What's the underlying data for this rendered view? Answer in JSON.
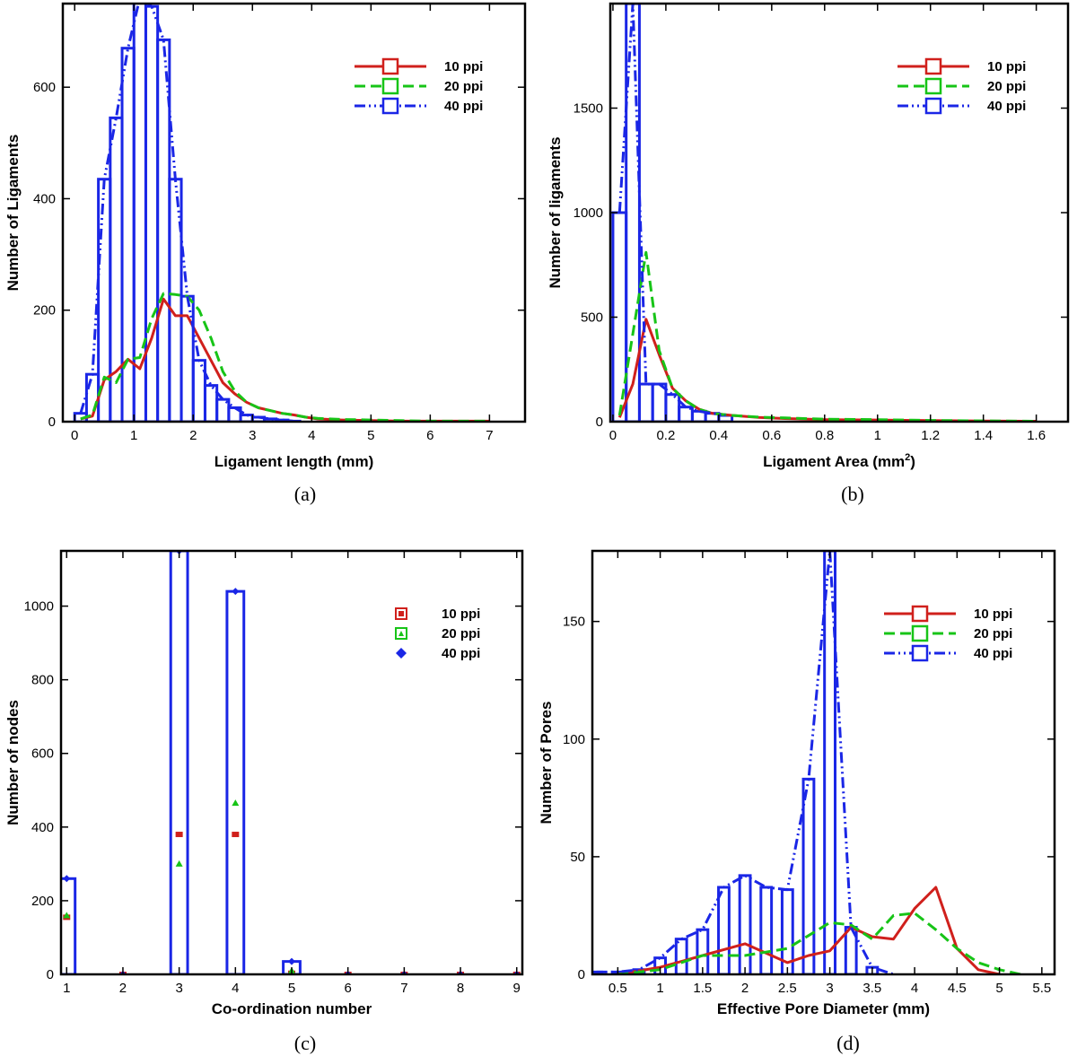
{
  "colors": {
    "p10": "#d0201c",
    "p20": "#17c417",
    "p40": "#1a26e6",
    "axis": "#000000"
  },
  "chart_data": [
    {
      "id": "a",
      "type": "bar",
      "caption": "(a)",
      "title": "",
      "xlabel": "Ligament length (mm)",
      "ylabel": "Number of Ligaments",
      "xlim": [
        -0.2,
        7.6
      ],
      "ylim": [
        0,
        750
      ],
      "xticks": [
        0,
        1,
        2,
        3,
        4,
        5,
        6,
        7
      ],
      "yticks": [
        0,
        200,
        400,
        600
      ],
      "legend": {
        "position": "top-right",
        "style": "line-square",
        "labels": [
          "10 ppi",
          "20 ppi",
          "40 ppi"
        ]
      },
      "bin_width": 0.2,
      "series": [
        {
          "name": "10 ppi",
          "color_key": "p10",
          "dash": "",
          "x": [
            0.1,
            0.3,
            0.5,
            0.7,
            0.9,
            1.1,
            1.3,
            1.5,
            1.7,
            1.9,
            2.1,
            2.3,
            2.5,
            2.7,
            2.9,
            3.1,
            3.3,
            3.5,
            3.7,
            3.9,
            4.1,
            4.5,
            5.0,
            5.5,
            6.0,
            7.0
          ],
          "values": [
            5,
            10,
            75,
            90,
            112,
            95,
            150,
            220,
            190,
            190,
            150,
            110,
            70,
            50,
            35,
            25,
            20,
            15,
            12,
            8,
            5,
            3,
            2,
            1,
            1,
            1
          ]
        },
        {
          "name": "20 ppi",
          "color_key": "p20",
          "dash": "12 6",
          "x": [
            0.1,
            0.3,
            0.5,
            0.7,
            0.9,
            1.1,
            1.3,
            1.5,
            1.7,
            1.9,
            2.1,
            2.3,
            2.5,
            2.7,
            2.9,
            3.1,
            3.3,
            3.5,
            3.7,
            3.9,
            4.1,
            4.5,
            5.0,
            5.5,
            6.0,
            7.0
          ],
          "values": [
            5,
            12,
            80,
            70,
            112,
            115,
            185,
            230,
            228,
            225,
            200,
            150,
            90,
            55,
            35,
            25,
            20,
            15,
            12,
            8,
            6,
            4,
            3,
            2,
            1,
            1
          ]
        },
        {
          "name": "40 ppi",
          "color_key": "p40",
          "dash": "12 4 2 4 2 4",
          "x": [
            0.1,
            0.3,
            0.5,
            0.7,
            0.9,
            1.1,
            1.3,
            1.5,
            1.7,
            1.9,
            2.1,
            2.3,
            2.5,
            2.7,
            2.9,
            3.1,
            3.3,
            3.5,
            3.7
          ],
          "values": [
            15,
            85,
            435,
            545,
            670,
            760,
            745,
            685,
            435,
            225,
            110,
            65,
            40,
            25,
            12,
            8,
            5,
            3,
            1
          ]
        }
      ],
      "bar_series": "40 ppi"
    },
    {
      "id": "b",
      "type": "bar",
      "caption": "(b)",
      "title": "",
      "xlabel": "Ligament Area (mm",
      "xlabel_sup": "2",
      "xlabel_tail": ")",
      "ylabel": "Number of ligaments",
      "xlim": [
        -0.01,
        1.72
      ],
      "ylim": [
        0,
        2000
      ],
      "xticks": [
        0,
        0.2,
        0.4,
        0.6,
        0.8,
        1,
        1.2,
        1.4,
        1.6
      ],
      "yticks": [
        0,
        500,
        1000,
        1500
      ],
      "legend": {
        "position": "top-right",
        "style": "line-square",
        "labels": [
          "10 ppi",
          "20 ppi",
          "40 ppi"
        ]
      },
      "bin_width": 0.05,
      "series": [
        {
          "name": "10 ppi",
          "color_key": "p10",
          "dash": "",
          "x": [
            0.025,
            0.075,
            0.125,
            0.175,
            0.225,
            0.275,
            0.325,
            0.375,
            0.45,
            0.55,
            0.65,
            0.8,
            1.0,
            1.2,
            1.4,
            1.6
          ],
          "values": [
            20,
            180,
            490,
            320,
            160,
            100,
            60,
            40,
            30,
            20,
            15,
            10,
            8,
            5,
            3,
            2
          ]
        },
        {
          "name": "20 ppi",
          "color_key": "p20",
          "dash": "12 6",
          "x": [
            0.025,
            0.075,
            0.125,
            0.175,
            0.225,
            0.275,
            0.325,
            0.375,
            0.45,
            0.55,
            0.65,
            0.8,
            1.0,
            1.2,
            1.4,
            1.6
          ],
          "values": [
            30,
            420,
            810,
            340,
            160,
            100,
            60,
            40,
            30,
            22,
            18,
            12,
            10,
            6,
            4,
            2
          ]
        },
        {
          "name": "40 ppi",
          "color_key": "p40",
          "dash": "12 4 2 4 2 4",
          "x": [
            0.025,
            0.075,
            0.125,
            0.175,
            0.225,
            0.275,
            0.325,
            0.375,
            0.425
          ],
          "values": [
            1000,
            2000,
            180,
            180,
            130,
            70,
            50,
            40,
            30
          ]
        }
      ],
      "bar_series": "40 ppi"
    },
    {
      "id": "c",
      "type": "bar",
      "caption": "(c)",
      "title": "",
      "xlabel": "Co-ordination number",
      "ylabel": "Number of nodes",
      "xlim": [
        0.9,
        9.1
      ],
      "ylim": [
        0,
        1150
      ],
      "xticks": [
        1,
        2,
        3,
        4,
        5,
        6,
        7,
        8,
        9
      ],
      "yticks": [
        0,
        200,
        400,
        600,
        800,
        1000
      ],
      "legend": {
        "position": "top-right",
        "style": "marker",
        "labels": [
          "10 ppi",
          "20 ppi",
          "40 ppi"
        ]
      },
      "bin_width": 0.3,
      "series": [
        {
          "name": "10 ppi",
          "color_key": "p10",
          "marker": "square",
          "x": [
            1,
            2,
            3,
            4,
            5,
            6,
            7,
            8,
            9
          ],
          "values": [
            155,
            0,
            380,
            380,
            3,
            0,
            0,
            0,
            0
          ]
        },
        {
          "name": "20 ppi",
          "color_key": "p20",
          "marker": "triangle",
          "x": [
            1,
            2,
            3,
            4,
            5,
            6,
            7,
            8,
            9
          ],
          "values": [
            160,
            0,
            300,
            465,
            10,
            0,
            0,
            0,
            0
          ]
        },
        {
          "name": "40 ppi",
          "color_key": "p40",
          "marker": "diamond",
          "x": [
            1,
            2,
            3,
            4,
            5,
            6,
            7,
            8,
            9
          ],
          "values": [
            260,
            0,
            1150,
            1040,
            35,
            0,
            0,
            0,
            0
          ]
        }
      ],
      "bar_series": "40 ppi"
    },
    {
      "id": "d",
      "type": "bar",
      "caption": "(d)",
      "title": "",
      "xlabel": "Effective Pore Diameter (mm)",
      "ylabel": "Number of Pores",
      "xlim": [
        0.2,
        5.65
      ],
      "ylim": [
        0,
        180
      ],
      "xticks": [
        0.5,
        1,
        1.5,
        2,
        2.5,
        3,
        3.5,
        4,
        4.5,
        5,
        5.5
      ],
      "yticks": [
        0,
        50,
        100,
        150
      ],
      "legend": {
        "position": "top-right",
        "style": "line-square",
        "labels": [
          "10 ppi",
          "20 ppi",
          "40 ppi"
        ]
      },
      "bin_width": 0.125,
      "series": [
        {
          "name": "10 ppi",
          "color_key": "p10",
          "dash": "",
          "x": [
            0.5,
            1.0,
            1.5,
            2.0,
            2.5,
            2.75,
            3.0,
            3.25,
            3.5,
            3.75,
            4.0,
            4.25,
            4.5,
            4.75,
            5.0
          ],
          "values": [
            0,
            3,
            8,
            13,
            5,
            8,
            10,
            20,
            16,
            15,
            28,
            37,
            11,
            2,
            0
          ]
        },
        {
          "name": "20 ppi",
          "color_key": "p20",
          "dash": "12 6",
          "x": [
            0.5,
            1.0,
            1.5,
            2.0,
            2.5,
            3.0,
            3.25,
            3.5,
            3.75,
            4.0,
            4.25,
            4.5,
            4.75,
            5.0,
            5.25
          ],
          "values": [
            0,
            2,
            8,
            8,
            11,
            22,
            21,
            15,
            25,
            26,
            19,
            11,
            5,
            2,
            0
          ]
        },
        {
          "name": "40 ppi",
          "color_key": "p40",
          "dash": "12 4 2 4 2 4",
          "x": [
            0.25,
            0.5,
            0.75,
            1.0,
            1.25,
            1.5,
            1.75,
            2.0,
            2.25,
            2.5,
            2.75,
            3.0,
            3.25,
            3.5,
            3.75
          ],
          "values": [
            1,
            1,
            2,
            7,
            15,
            19,
            37,
            42,
            37,
            36,
            83,
            180,
            20,
            3,
            0
          ]
        }
      ],
      "bar_series": "40 ppi"
    }
  ]
}
